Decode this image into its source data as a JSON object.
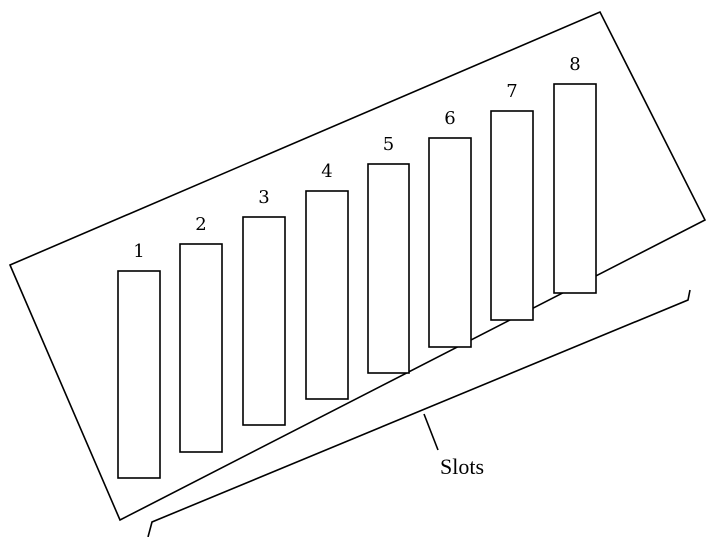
{
  "colors": {
    "stroke": "#000000",
    "background": "#ffffff"
  },
  "slots": [
    {
      "label": "1"
    },
    {
      "label": "2"
    },
    {
      "label": "3"
    },
    {
      "label": "4"
    },
    {
      "label": "5"
    },
    {
      "label": "6"
    },
    {
      "label": "7"
    },
    {
      "label": "8"
    }
  ],
  "callout": {
    "label": "Slots"
  }
}
